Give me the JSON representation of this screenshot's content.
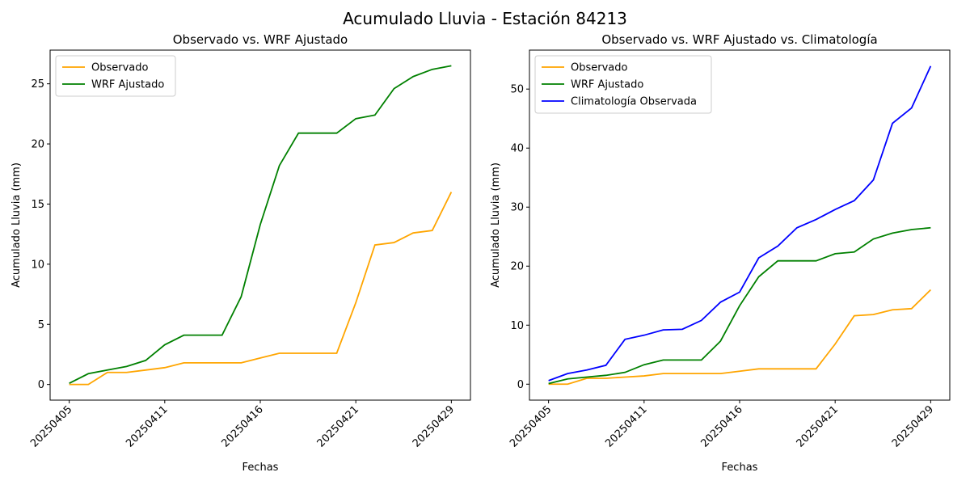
{
  "title": "Acumulado Lluvia - Estación 84213",
  "chart_data": [
    {
      "type": "line",
      "title": "Observado vs. WRF Ajustado",
      "xlabel": "Fechas",
      "ylabel": "Acumulado Lluvia (mm)",
      "categories": [
        "20250405",
        null,
        null,
        null,
        null,
        "20250411",
        null,
        null,
        null,
        null,
        "20250416",
        null,
        null,
        null,
        null,
        "20250421",
        null,
        null,
        null,
        null,
        "20250429"
      ],
      "ylim": [
        -1.3,
        27.8
      ],
      "yticks": [
        0,
        5,
        10,
        15,
        20,
        25
      ],
      "legend": "upper left",
      "series": [
        {
          "name": "Observado",
          "color": "#ffa500",
          "values": [
            0,
            0,
            1.0,
            1.0,
            1.2,
            1.4,
            1.8,
            1.8,
            1.8,
            1.8,
            2.2,
            2.6,
            2.6,
            2.6,
            2.6,
            6.8,
            11.6,
            11.8,
            12.6,
            12.8,
            16.0
          ]
        },
        {
          "name": "WRF Ajustado",
          "color": "#008000",
          "values": [
            0.1,
            0.9,
            1.2,
            1.5,
            2.0,
            3.3,
            4.1,
            4.1,
            4.1,
            7.3,
            13.3,
            18.2,
            20.9,
            20.9,
            20.9,
            22.1,
            22.4,
            24.6,
            25.6,
            26.2,
            26.5
          ]
        }
      ]
    },
    {
      "type": "line",
      "title": "Observado vs. WRF Ajustado vs. Climatología",
      "xlabel": "Fechas",
      "ylabel": "Acumulado Lluvia (mm)",
      "categories": [
        "20250405",
        null,
        null,
        null,
        null,
        "20250411",
        null,
        null,
        null,
        null,
        "20250416",
        null,
        null,
        null,
        null,
        "20250421",
        null,
        null,
        null,
        null,
        "20250429"
      ],
      "ylim": [
        -2.7,
        56.6
      ],
      "yticks": [
        0,
        10,
        20,
        30,
        40,
        50
      ],
      "legend": "upper left",
      "series": [
        {
          "name": "Observado",
          "color": "#ffa500",
          "values": [
            0,
            0,
            1.0,
            1.0,
            1.2,
            1.4,
            1.8,
            1.8,
            1.8,
            1.8,
            2.2,
            2.6,
            2.6,
            2.6,
            2.6,
            6.8,
            11.6,
            11.8,
            12.6,
            12.8,
            16.0
          ]
        },
        {
          "name": "WRF Ajustado",
          "color": "#008000",
          "values": [
            0.1,
            0.9,
            1.2,
            1.5,
            2.0,
            3.3,
            4.1,
            4.1,
            4.1,
            7.3,
            13.3,
            18.2,
            20.9,
            20.9,
            20.9,
            22.1,
            22.4,
            24.6,
            25.6,
            26.2,
            26.5
          ]
        },
        {
          "name": "Climatología Observada",
          "color": "#0000ff",
          "values": [
            0.6,
            1.8,
            2.4,
            3.2,
            7.6,
            8.3,
            9.2,
            9.3,
            10.8,
            13.9,
            15.6,
            21.4,
            23.4,
            26.5,
            27.9,
            29.6,
            31.1,
            34.6,
            44.2,
            46.8,
            53.9
          ]
        }
      ]
    }
  ]
}
